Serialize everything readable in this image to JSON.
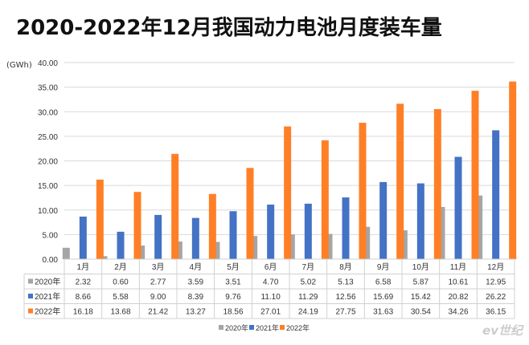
{
  "chart_data": {
    "type": "bar",
    "title": "2020-2022年12月我国动力电池月度装车量",
    "ylabel": "(GWh)",
    "ylim": [
      0,
      40
    ],
    "yticks": [
      "0.00",
      "5.00",
      "10.00",
      "15.00",
      "20.00",
      "25.00",
      "30.00",
      "35.00",
      "40.00"
    ],
    "grid": true,
    "legend": "bottom",
    "categories": [
      "1月",
      "2月",
      "3月",
      "4月",
      "5月",
      "6月",
      "7月",
      "8月",
      "9月",
      "10月",
      "11月",
      "12月"
    ],
    "series": [
      {
        "name": "2020年",
        "color": "#a5a5a5",
        "values": [
          2.32,
          0.6,
          2.77,
          3.59,
          3.51,
          4.7,
          5.02,
          5.13,
          6.58,
          5.87,
          10.61,
          12.95
        ],
        "labels": [
          "2.32",
          "0.60",
          "2.77",
          "3.59",
          "3.51",
          "4.70",
          "5.02",
          "5.13",
          "6.58",
          "5.87",
          "10.61",
          "12.95"
        ]
      },
      {
        "name": "2021年",
        "color": "#4472c4",
        "values": [
          8.66,
          5.58,
          9.0,
          8.39,
          9.76,
          11.1,
          11.29,
          12.56,
          15.69,
          15.42,
          20.82,
          26.22
        ],
        "labels": [
          "8.66",
          "5.58",
          "9.00",
          "8.39",
          "9.76",
          "11.10",
          "11.29",
          "12.56",
          "15.69",
          "15.42",
          "20.82",
          "26.22"
        ]
      },
      {
        "name": "2022年",
        "color": "#ff7f27",
        "values": [
          16.18,
          13.68,
          21.42,
          13.27,
          18.56,
          27.01,
          24.19,
          27.75,
          31.63,
          30.54,
          34.26,
          36.15
        ],
        "labels": [
          "16.18",
          "13.68",
          "21.42",
          "13.27",
          "18.56",
          "27.01",
          "24.19",
          "27.75",
          "31.63",
          "30.54",
          "34.26",
          "36.15"
        ]
      }
    ]
  },
  "watermark": "ev世纪"
}
